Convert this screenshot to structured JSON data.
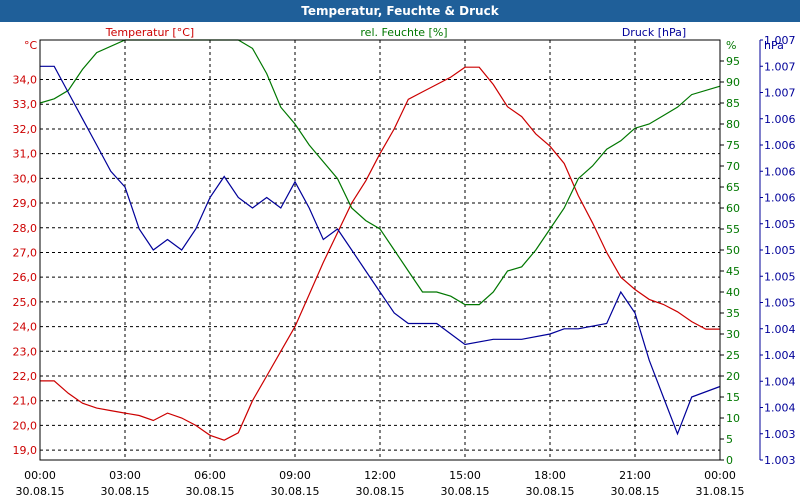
{
  "title": "Temperatur, Feuchte & Druck",
  "chart_data": {
    "type": "line",
    "title": "Temperatur, Feuchte & Druck",
    "grid": true,
    "x_tick_labels": [
      [
        "00:00",
        "30.08.15"
      ],
      [
        "03:00",
        "30.08.15"
      ],
      [
        "06:00",
        "30.08.15"
      ],
      [
        "09:00",
        "30.08.15"
      ],
      [
        "12:00",
        "30.08.15"
      ],
      [
        "15:00",
        "30.08.15"
      ],
      [
        "18:00",
        "30.08.15"
      ],
      [
        "21:00",
        "30.08.15"
      ],
      [
        "00:00",
        "31.08.15"
      ]
    ],
    "x_hours_range": [
      0,
      24
    ],
    "axes": {
      "temperature": {
        "label": "Temperatur [°C]",
        "unit": "°C",
        "range": [
          18.6,
          35.6
        ],
        "ticks": [
          "19,0",
          "20,0",
          "21,0",
          "22,0",
          "23,0",
          "24,0",
          "25,0",
          "26,0",
          "27,0",
          "28,0",
          "29,0",
          "30,0",
          "31,0",
          "32,0",
          "33,0",
          "34,0"
        ],
        "tick_values": [
          19,
          20,
          21,
          22,
          23,
          24,
          25,
          26,
          27,
          28,
          29,
          30,
          31,
          32,
          33,
          34
        ],
        "color": "#cc0000"
      },
      "humidity": {
        "label": "rel. Feuchte [%]",
        "unit": "%",
        "range": [
          0,
          100
        ],
        "ticks": [
          "0",
          "5",
          "10",
          "15",
          "20",
          "25",
          "30",
          "35",
          "40",
          "45",
          "50",
          "55",
          "60",
          "65",
          "70",
          "75",
          "80",
          "85",
          "90",
          "95"
        ],
        "tick_values": [
          0,
          5,
          10,
          15,
          20,
          25,
          30,
          35,
          40,
          45,
          50,
          55,
          60,
          65,
          70,
          75,
          80,
          85,
          90,
          95
        ],
        "color": "#007700"
      },
      "pressure": {
        "label": "Druck [hPa]",
        "unit": "hPa",
        "range": [
          1003.0,
          1007.0
        ],
        "ticks": [
          "1.003",
          "1.003",
          "1.004",
          "1.004",
          "1.004",
          "1.004",
          "1.005",
          "1.005",
          "1.005",
          "1.005",
          "1.006",
          "1.006",
          "1.006",
          "1.006",
          "1.007",
          "1.007",
          "1.007"
        ],
        "tick_values": [
          1003.0,
          1003.25,
          1003.5,
          1003.75,
          1004.0,
          1004.25,
          1004.5,
          1004.75,
          1005.0,
          1005.25,
          1005.5,
          1005.75,
          1006.0,
          1006.25,
          1006.5,
          1006.75,
          1007.0
        ],
        "color": "#000099"
      }
    },
    "series": [
      {
        "name": "Temperatur [°C]",
        "axis": "temperature",
        "color": "#cc0000",
        "points": [
          [
            0,
            21.8
          ],
          [
            0.5,
            21.8
          ],
          [
            1,
            21.3
          ],
          [
            1.5,
            20.9
          ],
          [
            2,
            20.7
          ],
          [
            2.5,
            20.6
          ],
          [
            3,
            20.5
          ],
          [
            3.5,
            20.4
          ],
          [
            4,
            20.2
          ],
          [
            4.5,
            20.5
          ],
          [
            5,
            20.3
          ],
          [
            5.5,
            20.0
          ],
          [
            6,
            19.6
          ],
          [
            6.5,
            19.4
          ],
          [
            7,
            19.7
          ],
          [
            7.5,
            21.0
          ],
          [
            8,
            22.0
          ],
          [
            8.5,
            23.0
          ],
          [
            9,
            24.0
          ],
          [
            9.5,
            25.3
          ],
          [
            10,
            26.6
          ],
          [
            10.5,
            27.8
          ],
          [
            11,
            29.0
          ],
          [
            11.5,
            29.9
          ],
          [
            12,
            31.0
          ],
          [
            12.5,
            32.0
          ],
          [
            13,
            33.2
          ],
          [
            13.5,
            33.5
          ],
          [
            14,
            33.8
          ],
          [
            14.5,
            34.1
          ],
          [
            15,
            34.5
          ],
          [
            15.5,
            34.5
          ],
          [
            16,
            33.8
          ],
          [
            16.5,
            32.9
          ],
          [
            17,
            32.5
          ],
          [
            17.5,
            31.8
          ],
          [
            18,
            31.3
          ],
          [
            18.5,
            30.6
          ],
          [
            19,
            29.3
          ],
          [
            19.5,
            28.2
          ],
          [
            20,
            27.0
          ],
          [
            20.5,
            26.0
          ],
          [
            21,
            25.5
          ],
          [
            21.5,
            25.1
          ],
          [
            22,
            24.9
          ],
          [
            22.5,
            24.6
          ],
          [
            23,
            24.2
          ],
          [
            23.5,
            23.9
          ],
          [
            24,
            23.9
          ]
        ]
      },
      {
        "name": "rel. Feuchte [%]",
        "axis": "humidity",
        "color": "#007700",
        "points": [
          [
            0,
            85
          ],
          [
            0.5,
            86
          ],
          [
            1,
            88
          ],
          [
            1.5,
            93
          ],
          [
            2,
            97
          ],
          [
            3,
            101
          ],
          [
            4,
            101
          ],
          [
            4.5,
            100
          ],
          [
            5,
            101
          ],
          [
            7,
            101
          ],
          [
            7.5,
            98
          ],
          [
            8,
            92
          ],
          [
            8.5,
            84
          ],
          [
            9,
            80
          ],
          [
            9.5,
            75
          ],
          [
            10,
            71
          ],
          [
            10.5,
            67
          ],
          [
            11,
            60
          ],
          [
            11.5,
            57
          ],
          [
            12,
            55
          ],
          [
            12.5,
            50
          ],
          [
            13,
            45
          ],
          [
            13.5,
            40
          ],
          [
            14,
            40
          ],
          [
            14.5,
            39
          ],
          [
            15,
            37
          ],
          [
            15.5,
            37
          ],
          [
            16,
            40
          ],
          [
            16.5,
            45
          ],
          [
            17,
            46
          ],
          [
            17.5,
            50
          ],
          [
            18,
            55
          ],
          [
            18.5,
            60
          ],
          [
            19,
            67
          ],
          [
            19.5,
            70
          ],
          [
            20,
            74
          ],
          [
            20.5,
            76
          ],
          [
            21,
            79
          ],
          [
            21.5,
            80
          ],
          [
            22,
            82
          ],
          [
            22.5,
            84
          ],
          [
            23,
            87
          ],
          [
            24,
            89
          ]
        ]
      },
      {
        "name": "Druck [hPa]",
        "axis": "pressure",
        "color": "#000099",
        "points": [
          [
            0,
            1006.75
          ],
          [
            0.5,
            1006.75
          ],
          [
            1,
            1006.5
          ],
          [
            1.5,
            1006.25
          ],
          [
            2,
            1006.0
          ],
          [
            2.5,
            1005.75
          ],
          [
            3,
            1005.6
          ],
          [
            3.5,
            1005.2
          ],
          [
            4,
            1005.0
          ],
          [
            4.5,
            1005.1
          ],
          [
            5,
            1005.0
          ],
          [
            5.5,
            1005.2
          ],
          [
            6,
            1005.5
          ],
          [
            6.5,
            1005.7
          ],
          [
            7,
            1005.5
          ],
          [
            7.5,
            1005.4
          ],
          [
            8,
            1005.5
          ],
          [
            8.5,
            1005.4
          ],
          [
            9,
            1005.65
          ],
          [
            9.5,
            1005.4
          ],
          [
            10,
            1005.1
          ],
          [
            10.5,
            1005.2
          ],
          [
            11,
            1005.0
          ],
          [
            11.5,
            1004.8
          ],
          [
            12,
            1004.6
          ],
          [
            12.5,
            1004.4
          ],
          [
            13,
            1004.3
          ],
          [
            14,
            1004.3
          ],
          [
            15,
            1004.1
          ],
          [
            16,
            1004.15
          ],
          [
            17,
            1004.15
          ],
          [
            18,
            1004.2
          ],
          [
            18.5,
            1004.25
          ],
          [
            19,
            1004.25
          ],
          [
            20,
            1004.3
          ],
          [
            20.5,
            1004.6
          ],
          [
            21,
            1004.4
          ],
          [
            21.5,
            1003.95
          ],
          [
            22,
            1003.6
          ],
          [
            22.5,
            1003.25
          ],
          [
            23,
            1003.6
          ],
          [
            24,
            1003.7
          ]
        ]
      }
    ]
  }
}
